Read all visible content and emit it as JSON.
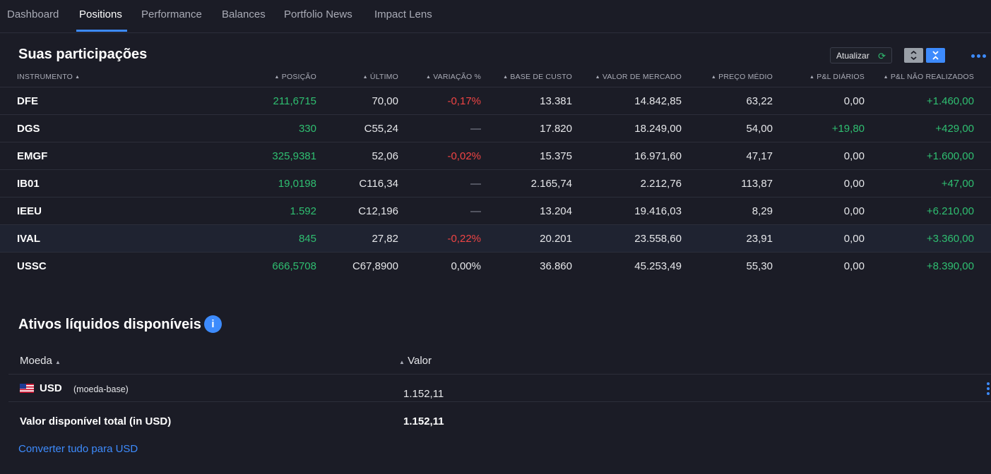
{
  "nav": {
    "tabs": [
      "Dashboard",
      "Positions",
      "Performance",
      "Balances",
      "Portfolio News",
      "Impact Lens"
    ],
    "active_tab": "Positions"
  },
  "holdings": {
    "title": "Suas participações",
    "refresh_label": "Atualizar",
    "columns": [
      "INSTRUMENTO",
      "POSIÇÃO",
      "ÚLTIMO",
      "VARIAÇÃO %",
      "BASE DE CUSTO",
      "VALOR DE MERCADO",
      "PREÇO MÉDIO",
      "P&L DIÁRIOS",
      "P&L NÃO REALIZADOS"
    ],
    "rows": [
      {
        "symbol": "DFE",
        "position": "211,6715",
        "last": "70,00",
        "change": "-0,17%",
        "cost_basis": "13.381",
        "market_value": "14.842,85",
        "avg_price": "63,22",
        "daily_pnl": "0,00",
        "unrealized_pnl": "+1.460,00"
      },
      {
        "symbol": "DGS",
        "position": "330",
        "last": "C55,24",
        "change": "—",
        "cost_basis": "17.820",
        "market_value": "18.249,00",
        "avg_price": "54,00",
        "daily_pnl": "+19,80",
        "unrealized_pnl": "+429,00"
      },
      {
        "symbol": "EMGF",
        "position": "325,9381",
        "last": "52,06",
        "change": "-0,02%",
        "cost_basis": "15.375",
        "market_value": "16.971,60",
        "avg_price": "47,17",
        "daily_pnl": "0,00",
        "unrealized_pnl": "+1.600,00"
      },
      {
        "symbol": "IB01",
        "position": "19,0198",
        "last": "C116,34",
        "change": "—",
        "cost_basis": "2.165,74",
        "market_value": "2.212,76",
        "avg_price": "113,87",
        "daily_pnl": "0,00",
        "unrealized_pnl": "+47,00"
      },
      {
        "symbol": "IEEU",
        "position": "1.592",
        "last": "C12,196",
        "change": "—",
        "cost_basis": "13.204",
        "market_value": "19.416,03",
        "avg_price": "8,29",
        "daily_pnl": "0,00",
        "unrealized_pnl": "+6.210,00"
      },
      {
        "symbol": "IVAL",
        "position": "845",
        "last": "27,82",
        "change": "-0,22%",
        "cost_basis": "20.201",
        "market_value": "23.558,60",
        "avg_price": "23,91",
        "daily_pnl": "0,00",
        "unrealized_pnl": "+3.360,00"
      },
      {
        "symbol": "USSC",
        "position": "666,5708",
        "last": "C67,8900",
        "change": "0,00%",
        "cost_basis": "36.860",
        "market_value": "45.253,49",
        "avg_price": "55,30",
        "daily_pnl": "0,00",
        "unrealized_pnl": "+8.390,00"
      }
    ]
  },
  "cash": {
    "title": "Ativos líquidos disponíveis",
    "columns": [
      "Moeda",
      "Valor"
    ],
    "currency": "USD",
    "currency_note": "(moeda-base)",
    "value": "1.152,11",
    "total_label": "Valor disponível total (in USD)",
    "total_value": "1.152,11",
    "convert_label": "Converter tudo para USD"
  },
  "colors": {
    "accent": "#3d8bfd",
    "positive": "#2fbf71",
    "negative": "#ef4444",
    "background": "#1b1c26"
  }
}
